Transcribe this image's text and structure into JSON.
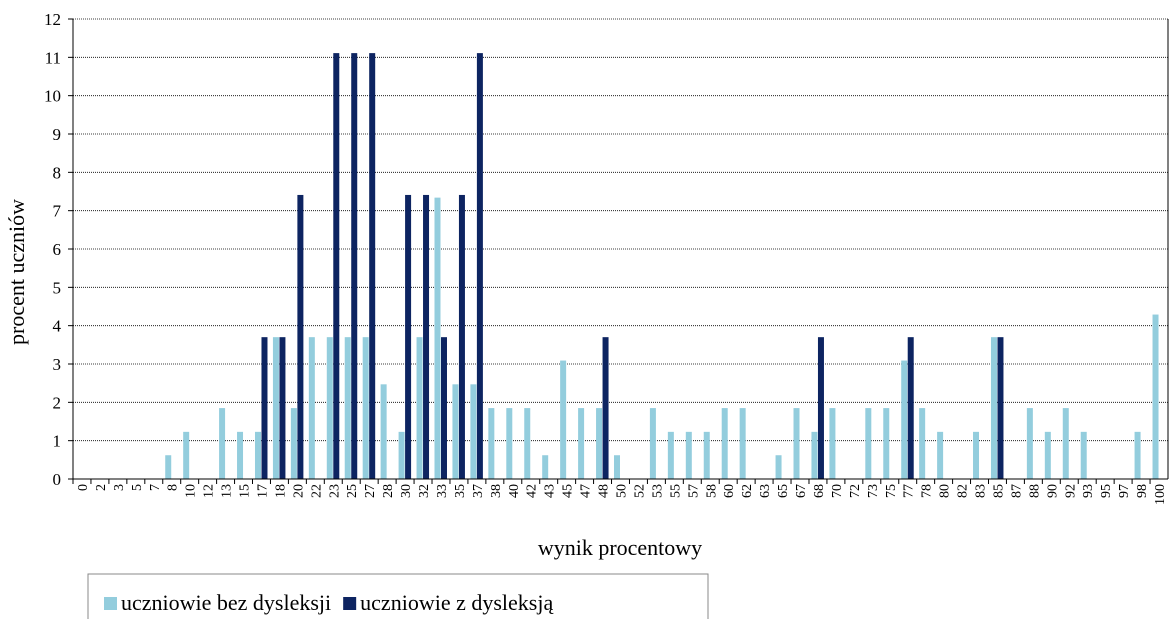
{
  "chart_data": {
    "type": "bar",
    "x_label": "wynik procentowy",
    "y_label": "procent uczniów",
    "categories": [
      "0",
      "2",
      "3",
      "5",
      "7",
      "8",
      "10",
      "12",
      "13",
      "15",
      "17",
      "18",
      "20",
      "22",
      "23",
      "25",
      "27",
      "28",
      "30",
      "32",
      "33",
      "35",
      "37",
      "38",
      "40",
      "42",
      "43",
      "45",
      "47",
      "48",
      "50",
      "52",
      "53",
      "55",
      "57",
      "58",
      "60",
      "62",
      "63",
      "65",
      "67",
      "68",
      "70",
      "72",
      "73",
      "75",
      "77",
      "78",
      "80",
      "82",
      "83",
      "85",
      "87",
      "88",
      "90",
      "92",
      "93",
      "95",
      "97",
      "98",
      "100"
    ],
    "series": [
      {
        "name": "uczniowie bez dysleksji",
        "color": "#93cddd",
        "values": [
          0,
          0,
          0,
          0,
          0,
          0.62,
          1.23,
          0,
          1.85,
          1.23,
          1.23,
          3.7,
          1.85,
          3.7,
          3.7,
          3.7,
          3.7,
          2.47,
          1.23,
          3.7,
          7.34,
          2.47,
          2.47,
          1.85,
          1.85,
          1.85,
          0.62,
          3.09,
          1.85,
          1.85,
          0.62,
          0,
          1.85,
          1.23,
          1.23,
          1.23,
          1.85,
          1.85,
          0,
          0.62,
          1.85,
          1.23,
          1.85,
          0,
          1.85,
          1.85,
          3.09,
          1.85,
          1.23,
          0,
          1.23,
          3.7,
          0,
          1.85,
          1.23,
          1.85,
          1.23,
          0,
          0,
          1.23,
          4.29
        ]
      },
      {
        "name": "uczniowie z dysleksją",
        "color": "#0d2461",
        "values": [
          0,
          0,
          0,
          0,
          0,
          0,
          0,
          0,
          0,
          0,
          3.7,
          3.7,
          7.41,
          0,
          11.11,
          11.11,
          11.11,
          0,
          7.41,
          7.41,
          3.7,
          7.41,
          11.11,
          0,
          0,
          0,
          0,
          0,
          0,
          3.7,
          0,
          0,
          0,
          0,
          0,
          0,
          0,
          0,
          0,
          0,
          0,
          3.7,
          0,
          0,
          0,
          0,
          3.7,
          0,
          0,
          0,
          0,
          3.7,
          0,
          0,
          0,
          0,
          0,
          0,
          0,
          0,
          0
        ]
      }
    ],
    "ylim": [
      0,
      12
    ],
    "yticks": [
      0,
      1,
      2,
      3,
      4,
      5,
      6,
      7,
      8,
      9,
      10,
      11,
      12
    ],
    "grid": true
  }
}
